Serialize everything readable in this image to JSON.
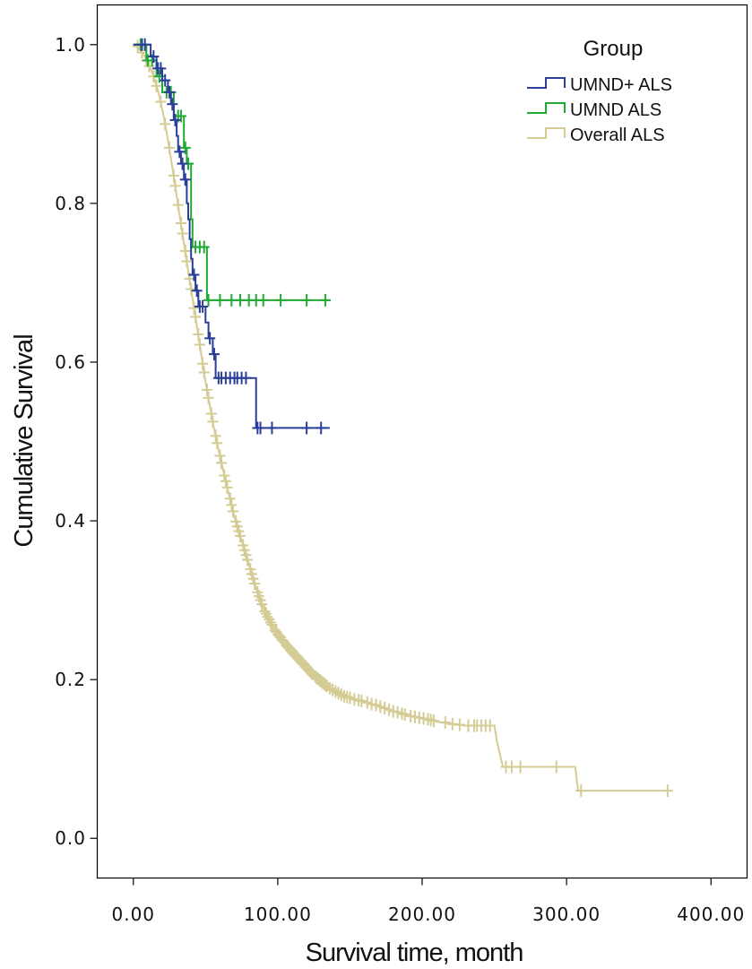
{
  "chart_data": {
    "type": "line",
    "subtype": "kaplan-meier",
    "xlabel": "Survival time, month",
    "ylabel": "Cumulative Survival",
    "xlim": [
      -25,
      425
    ],
    "ylim": [
      -0.05,
      1.05
    ],
    "x_ticks": [
      0,
      100,
      200,
      300,
      400
    ],
    "x_tick_labels": [
      "0.00",
      "100.00",
      "200.00",
      "300.00",
      "400.00"
    ],
    "y_ticks": [
      0,
      0.2,
      0.4,
      0.6,
      0.8,
      1.0
    ],
    "y_tick_labels": [
      "0.0",
      "0.2",
      "0.4",
      "0.6",
      "0.8",
      "1.0"
    ],
    "grid": false,
    "legend": {
      "title": "Group",
      "position": "top-right"
    },
    "series": [
      {
        "name": "UMND+ ALS",
        "color": "#2b3f99",
        "steps": [
          [
            0,
            1.0
          ],
          [
            10,
            1.0
          ],
          [
            12,
            0.985
          ],
          [
            16,
            0.97
          ],
          [
            20,
            0.955
          ],
          [
            24,
            0.94
          ],
          [
            26,
            0.925
          ],
          [
            28,
            0.905
          ],
          [
            30,
            0.885
          ],
          [
            31,
            0.865
          ],
          [
            33,
            0.85
          ],
          [
            35,
            0.83
          ],
          [
            37,
            0.8
          ],
          [
            38,
            0.78
          ],
          [
            39,
            0.755
          ],
          [
            40,
            0.73
          ],
          [
            41,
            0.71
          ],
          [
            43,
            0.69
          ],
          [
            45,
            0.67
          ],
          [
            50,
            0.65
          ],
          [
            52,
            0.63
          ],
          [
            55,
            0.61
          ],
          [
            57,
            0.58
          ],
          [
            84,
            0.58
          ],
          [
            85,
            0.517
          ],
          [
            136,
            0.517
          ]
        ],
        "censored": [
          [
            6,
            1.0
          ],
          [
            8,
            1.0
          ],
          [
            14,
            0.985
          ],
          [
            17,
            0.97
          ],
          [
            19,
            0.97
          ],
          [
            22,
            0.955
          ],
          [
            25,
            0.94
          ],
          [
            27,
            0.925
          ],
          [
            29,
            0.905
          ],
          [
            32,
            0.865
          ],
          [
            34,
            0.85
          ],
          [
            36,
            0.83
          ],
          [
            42,
            0.71
          ],
          [
            44,
            0.69
          ],
          [
            46,
            0.67
          ],
          [
            48,
            0.67
          ],
          [
            53,
            0.63
          ],
          [
            56,
            0.61
          ],
          [
            59,
            0.58
          ],
          [
            61,
            0.58
          ],
          [
            64,
            0.58
          ],
          [
            67,
            0.58
          ],
          [
            70,
            0.58
          ],
          [
            72,
            0.58
          ],
          [
            75,
            0.58
          ],
          [
            78,
            0.58
          ],
          [
            86,
            0.517
          ],
          [
            88,
            0.517
          ],
          [
            96,
            0.517
          ],
          [
            120,
            0.517
          ],
          [
            130,
            0.517
          ]
        ]
      },
      {
        "name": "UMND ALS",
        "color": "#22aa36",
        "steps": [
          [
            0,
            1.0
          ],
          [
            8,
            1.0
          ],
          [
            9,
            0.98
          ],
          [
            16,
            0.96
          ],
          [
            20,
            0.94
          ],
          [
            28,
            0.91
          ],
          [
            35,
            0.87
          ],
          [
            37,
            0.85
          ],
          [
            40,
            0.78
          ],
          [
            41,
            0.745
          ],
          [
            50,
            0.745
          ],
          [
            51,
            0.678
          ],
          [
            136,
            0.678
          ]
        ],
        "censored": [
          [
            5,
            1.0
          ],
          [
            10,
            0.98
          ],
          [
            13,
            0.98
          ],
          [
            18,
            0.96
          ],
          [
            23,
            0.94
          ],
          [
            26,
            0.94
          ],
          [
            31,
            0.91
          ],
          [
            33,
            0.91
          ],
          [
            36,
            0.87
          ],
          [
            38,
            0.85
          ],
          [
            43,
            0.745
          ],
          [
            46,
            0.745
          ],
          [
            49,
            0.745
          ],
          [
            52,
            0.678
          ],
          [
            60,
            0.678
          ],
          [
            68,
            0.678
          ],
          [
            74,
            0.678
          ],
          [
            80,
            0.678
          ],
          [
            85,
            0.678
          ],
          [
            90,
            0.678
          ],
          [
            102,
            0.678
          ],
          [
            120,
            0.678
          ],
          [
            133,
            0.678
          ]
        ]
      },
      {
        "name": "Overall ALS",
        "color": "#d4cc94",
        "points": [
          [
            0,
            1.0
          ],
          [
            4,
            0.995
          ],
          [
            8,
            0.985
          ],
          [
            12,
            0.97
          ],
          [
            15,
            0.955
          ],
          [
            18,
            0.935
          ],
          [
            21,
            0.91
          ],
          [
            24,
            0.88
          ],
          [
            27,
            0.845
          ],
          [
            30,
            0.81
          ],
          [
            32,
            0.785
          ],
          [
            35,
            0.75
          ],
          [
            38,
            0.715
          ],
          [
            41,
            0.68
          ],
          [
            44,
            0.645
          ],
          [
            47,
            0.61
          ],
          [
            50,
            0.575
          ],
          [
            53,
            0.545
          ],
          [
            56,
            0.515
          ],
          [
            59,
            0.49
          ],
          [
            62,
            0.465
          ],
          [
            66,
            0.435
          ],
          [
            70,
            0.405
          ],
          [
            75,
            0.375
          ],
          [
            80,
            0.345
          ],
          [
            85,
            0.315
          ],
          [
            90,
            0.29
          ],
          [
            97,
            0.265
          ],
          [
            105,
            0.245
          ],
          [
            115,
            0.225
          ],
          [
            125,
            0.205
          ],
          [
            135,
            0.19
          ],
          [
            145,
            0.18
          ],
          [
            160,
            0.172
          ],
          [
            175,
            0.163
          ],
          [
            190,
            0.155
          ],
          [
            210,
            0.147
          ],
          [
            230,
            0.142
          ],
          [
            250,
            0.142
          ],
          [
            252,
            0.12
          ],
          [
            254,
            0.105
          ],
          [
            256,
            0.09
          ],
          [
            306,
            0.09
          ],
          [
            308,
            0.06
          ],
          [
            371,
            0.06
          ]
        ],
        "censored": [
          [
            3,
            0.998
          ],
          [
            6,
            0.99
          ],
          [
            9,
            0.98
          ],
          [
            11,
            0.973
          ],
          [
            14,
            0.96
          ],
          [
            16,
            0.948
          ],
          [
            19,
            0.928
          ],
          [
            22,
            0.9
          ],
          [
            25,
            0.87
          ],
          [
            28,
            0.835
          ],
          [
            29,
            0.822
          ],
          [
            31,
            0.798
          ],
          [
            33,
            0.775
          ],
          [
            34,
            0.762
          ],
          [
            36,
            0.74
          ],
          [
            37,
            0.727
          ],
          [
            39,
            0.705
          ],
          [
            40,
            0.692
          ],
          [
            42,
            0.668
          ],
          [
            43,
            0.657
          ],
          [
            45,
            0.635
          ],
          [
            46,
            0.622
          ],
          [
            48,
            0.598
          ],
          [
            49,
            0.587
          ],
          [
            51,
            0.565
          ],
          [
            52,
            0.555
          ],
          [
            54,
            0.535
          ],
          [
            55,
            0.525
          ],
          [
            57,
            0.507
          ],
          [
            58,
            0.498
          ],
          [
            60,
            0.482
          ],
          [
            61,
            0.473
          ],
          [
            63,
            0.457
          ],
          [
            64,
            0.45
          ],
          [
            65,
            0.442
          ],
          [
            67,
            0.428
          ],
          [
            68,
            0.42
          ],
          [
            69,
            0.412
          ],
          [
            71,
            0.399
          ],
          [
            72,
            0.393
          ],
          [
            73,
            0.387
          ],
          [
            74,
            0.381
          ],
          [
            76,
            0.369
          ],
          [
            77,
            0.363
          ],
          [
            78,
            0.357
          ],
          [
            79,
            0.351
          ],
          [
            81,
            0.339
          ],
          [
            82,
            0.333
          ],
          [
            83,
            0.327
          ],
          [
            84,
            0.321
          ],
          [
            86,
            0.31
          ],
          [
            87,
            0.305
          ],
          [
            88,
            0.3
          ],
          [
            89,
            0.295
          ],
          [
            91,
            0.286
          ],
          [
            92,
            0.283
          ],
          [
            93,
            0.279
          ],
          [
            94,
            0.276
          ],
          [
            95,
            0.272
          ],
          [
            96,
            0.269
          ],
          [
            98,
            0.262
          ],
          [
            99,
            0.26
          ],
          [
            100,
            0.257
          ],
          [
            101,
            0.255
          ],
          [
            102,
            0.253
          ],
          [
            103,
            0.25
          ],
          [
            104,
            0.248
          ],
          [
            106,
            0.243
          ],
          [
            107,
            0.241
          ],
          [
            108,
            0.239
          ],
          [
            109,
            0.237
          ],
          [
            110,
            0.235
          ],
          [
            111,
            0.233
          ],
          [
            112,
            0.231
          ],
          [
            113,
            0.229
          ],
          [
            114,
            0.227
          ],
          [
            116,
            0.223
          ],
          [
            117,
            0.221
          ],
          [
            118,
            0.219
          ],
          [
            119,
            0.217
          ],
          [
            120,
            0.215
          ],
          [
            121,
            0.213
          ],
          [
            122,
            0.211
          ],
          [
            123,
            0.209
          ],
          [
            124,
            0.207
          ],
          [
            126,
            0.204
          ],
          [
            127,
            0.202
          ],
          [
            128,
            0.201
          ],
          [
            129,
            0.199
          ],
          [
            130,
            0.198
          ],
          [
            131,
            0.196
          ],
          [
            132,
            0.195
          ],
          [
            133,
            0.193
          ],
          [
            134,
            0.192
          ],
          [
            136,
            0.189
          ],
          [
            138,
            0.187
          ],
          [
            140,
            0.185
          ],
          [
            142,
            0.183
          ],
          [
            144,
            0.181
          ],
          [
            146,
            0.179
          ],
          [
            148,
            0.178
          ],
          [
            150,
            0.177
          ],
          [
            153,
            0.175
          ],
          [
            156,
            0.174
          ],
          [
            158,
            0.173
          ],
          [
            162,
            0.171
          ],
          [
            165,
            0.169
          ],
          [
            168,
            0.168
          ],
          [
            171,
            0.166
          ],
          [
            174,
            0.164
          ],
          [
            177,
            0.162
          ],
          [
            180,
            0.16
          ],
          [
            183,
            0.159
          ],
          [
            186,
            0.157
          ],
          [
            188,
            0.156
          ],
          [
            192,
            0.154
          ],
          [
            195,
            0.153
          ],
          [
            198,
            0.152
          ],
          [
            201,
            0.151
          ],
          [
            204,
            0.15
          ],
          [
            206,
            0.149
          ],
          [
            208,
            0.148
          ],
          [
            216,
            0.146
          ],
          [
            221,
            0.144
          ],
          [
            226,
            0.143
          ],
          [
            232,
            0.142
          ],
          [
            236,
            0.142
          ],
          [
            238,
            0.142
          ],
          [
            241,
            0.142
          ],
          [
            244,
            0.142
          ],
          [
            247,
            0.142
          ],
          [
            258,
            0.09
          ],
          [
            262,
            0.09
          ],
          [
            268,
            0.09
          ],
          [
            293,
            0.09
          ],
          [
            310,
            0.06
          ],
          [
            370,
            0.06
          ]
        ]
      }
    ]
  }
}
